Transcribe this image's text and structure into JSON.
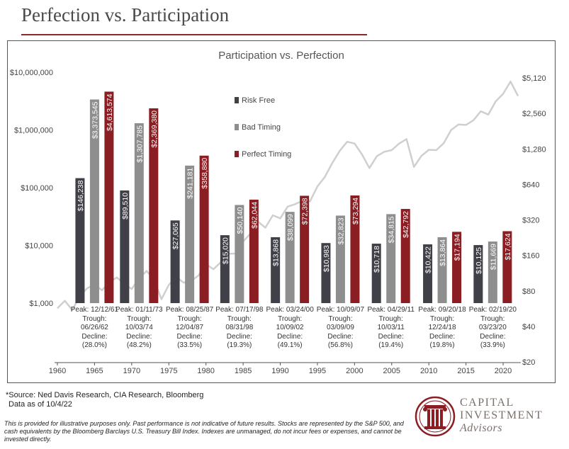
{
  "page": {
    "title": "Perfection vs. Participation",
    "source": "*Source: Ned Davis Research, CIA Research, Bloomberg",
    "data_as_of": "Data as of 10/4/22",
    "disclaimer": "This is provided for illustrative purposes only.  Past performance is not indicative of future results.  Stocks are represented by the S&P 500, and cash equivalents by the Bloomberg Barclays U.S. Treasury Bill Index. Indexes are unmanaged, do not incur fees or expenses, and cannot be invested directly.",
    "logo": {
      "line1": "CAPITAL",
      "line2": "INVESTMENT",
      "line3": "Advisors"
    }
  },
  "chart_data": {
    "type": "bar",
    "title": "Participation vs. Perfection",
    "colors": {
      "Risk Free": "#404048",
      "Bad Timing": "#8e8e8e",
      "Perfect Timing": "#8b1e23",
      "sp500_line": "#cfcfcf"
    },
    "y_left": {
      "scale": "log",
      "ylim": [
        1000,
        10000000
      ],
      "ticks": [
        "$1,000",
        "$10,000",
        "$100,000",
        "$1,000,000",
        "$10,000,000"
      ]
    },
    "y_right": {
      "scale": "log",
      "ylim": [
        20,
        5120
      ],
      "ticks": [
        "$20",
        "$40",
        "$80",
        "$160",
        "$320",
        "$640",
        "$1,280",
        "$2,560",
        "$5,120"
      ]
    },
    "x_axis": {
      "range": [
        1960,
        2022
      ],
      "ticks": [
        "1960",
        "1965",
        "1970",
        "1975",
        "1980",
        "1985",
        "1990",
        "1995",
        "2000",
        "2005",
        "2010",
        "2015",
        "2020"
      ]
    },
    "legend": {
      "position": "top-left",
      "entries": [
        "Risk Free",
        "Bad Timing",
        "Perfect Timing"
      ]
    },
    "groups": [
      {
        "year": 1965,
        "peak": "Peak: 12/12/61",
        "trough": "Trough: 06/26/62",
        "decline": "(28.0%)",
        "values": [
          146238,
          3373545,
          4613574
        ],
        "labels": [
          "$146,238",
          "$3,373,545",
          "$4,613,574"
        ]
      },
      {
        "year": 1971,
        "peak": "Peak: 01/11/73",
        "trough": "Trough: 10/03/74",
        "decline": "(48.2%)",
        "values": [
          89510,
          1307785,
          2369380
        ],
        "labels": [
          "$89,510",
          "$1,307,785",
          "$2,369,380"
        ]
      },
      {
        "year": 1977.8,
        "peak": "Peak: 08/25/87",
        "trough": "Trough: 12/04/87",
        "decline": "(33.5%)",
        "values": [
          27065,
          241181,
          358880
        ],
        "labels": [
          "$27,065",
          "$241,181",
          "$358,880"
        ]
      },
      {
        "year": 1984.5,
        "peak": "Peak: 07/17/98",
        "trough": "Trough: 08/31/98",
        "decline": "(19.3%)",
        "values": [
          15020,
          50140,
          62044
        ],
        "labels": [
          "$15,020",
          "$50,140",
          "$62,044"
        ]
      },
      {
        "year": 1991.3,
        "peak": "Peak: 03/24/00",
        "trough": "Trough: 10/09/02",
        "decline": "(49.1%)",
        "values": [
          13868,
          38099,
          72398
        ],
        "labels": [
          "$13,868",
          "$38,099",
          "$72,398"
        ]
      },
      {
        "year": 1998.1,
        "peak": "Peak: 10/09/07",
        "trough": "Trough: 03/09/09",
        "decline": "(56.8%)",
        "values": [
          10983,
          32823,
          73294
        ],
        "labels": [
          "$10,983",
          "$32,823",
          "$73,294"
        ]
      },
      {
        "year": 2004.9,
        "peak": "Peak: 04/29/11",
        "trough": "Trough: 10/03/11",
        "decline": "(19.4%)",
        "values": [
          10718,
          34815,
          42792
        ],
        "labels": [
          "$10,718",
          "$34,815",
          "$42,792"
        ]
      },
      {
        "year": 2011.8,
        "peak": "Peak: 09/20/18",
        "trough": "Trough: 12/24/18",
        "decline": "(19.8%)",
        "values": [
          10422,
          13864,
          17194
        ],
        "labels": [
          "$10,422",
          "$13,864",
          "$17,194"
        ]
      },
      {
        "year": 2018.6,
        "peak": "Peak: 02/19/20",
        "trough": "Trough: 03/23/20",
        "decline": "(33.9%)",
        "values": [
          10125,
          11669,
          17624
        ],
        "labels": [
          "$10,125",
          "$11,669",
          "$17,624"
        ]
      }
    ],
    "decline_prefix": "Decline:",
    "sp500_series": [
      [
        1960,
        57
      ],
      [
        1961,
        66
      ],
      [
        1962,
        55
      ],
      [
        1963,
        72
      ],
      [
        1964,
        84
      ],
      [
        1965,
        91
      ],
      [
        1966,
        81
      ],
      [
        1967,
        95
      ],
      [
        1968,
        104
      ],
      [
        1969,
        92
      ],
      [
        1970,
        83
      ],
      [
        1971,
        102
      ],
      [
        1972,
        118
      ],
      [
        1973,
        100
      ],
      [
        1974,
        68
      ],
      [
        1975,
        90
      ],
      [
        1976,
        105
      ],
      [
        1977,
        94
      ],
      [
        1978,
        97
      ],
      [
        1979,
        108
      ],
      [
        1980,
        135
      ],
      [
        1981,
        122
      ],
      [
        1982,
        140
      ],
      [
        1983,
        165
      ],
      [
        1984,
        166
      ],
      [
        1985,
        210
      ],
      [
        1986,
        245
      ],
      [
        1987,
        310
      ],
      [
        1988,
        275
      ],
      [
        1989,
        350
      ],
      [
        1990,
        330
      ],
      [
        1991,
        415
      ],
      [
        1992,
        435
      ],
      [
        1993,
        465
      ],
      [
        1994,
        460
      ],
      [
        1995,
        615
      ],
      [
        1996,
        740
      ],
      [
        1997,
        970
      ],
      [
        1998,
        1230
      ],
      [
        1999,
        1470
      ],
      [
        2000,
        1420
      ],
      [
        2001,
        1150
      ],
      [
        2002,
        880
      ],
      [
        2003,
        1110
      ],
      [
        2004,
        1210
      ],
      [
        2005,
        1250
      ],
      [
        2006,
        1420
      ],
      [
        2007,
        1550
      ],
      [
        2008,
        900
      ],
      [
        2009,
        1115
      ],
      [
        2010,
        1258
      ],
      [
        2011,
        1250
      ],
      [
        2012,
        1430
      ],
      [
        2013,
        1850
      ],
      [
        2014,
        2060
      ],
      [
        2015,
        2044
      ],
      [
        2016,
        2240
      ],
      [
        2017,
        2670
      ],
      [
        2018,
        2500
      ],
      [
        2019,
        3230
      ],
      [
        2020,
        3750
      ],
      [
        2021,
        4770
      ],
      [
        2022,
        3600
      ]
    ]
  }
}
